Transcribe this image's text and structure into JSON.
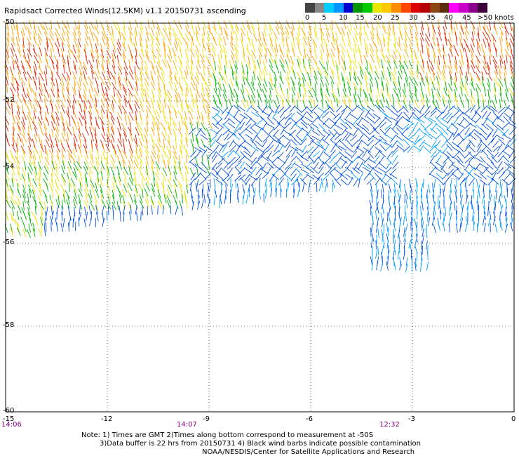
{
  "title": "Rapidsact Corrected Winds(12.5KM) v1.1 20150731 ascending",
  "scale": {
    "colors": [
      "#444444",
      "#888888",
      "#00cdff",
      "#0096ff",
      "#0000cd",
      "#009600",
      "#00c800",
      "#e6e600",
      "#ffc800",
      "#ff8c00",
      "#ff4500",
      "#dc0000",
      "#b40000",
      "#8b4513",
      "#5a2d0c",
      "#ff00ff",
      "#c800c8",
      "#8c008c",
      "#3c003c"
    ],
    "ticks": [
      "0",
      "5",
      "10",
      "15",
      "20",
      "25",
      "30",
      "35",
      "40",
      "45",
      ">50 knots"
    ]
  },
  "axes": {
    "lat_labels": [
      "-50",
      "-52",
      "-54",
      "-56",
      "-58",
      "-60"
    ],
    "lon_labels": [
      "-15",
      "-12",
      "-9",
      "-6",
      "-3",
      "0"
    ],
    "time_labels": [
      "14:06",
      "14:07",
      "12:32"
    ]
  },
  "notes": {
    "line1": "Note: 1) Times are GMT 2)Times along bottom correspond to measurement at -50S",
    "line2": "3)Data buffer is 22 hrs from 20150731 4) Black wind barbs indicate possible contamination",
    "line3": "NOAA/NESDIS/Center for Satellite Applications and Research"
  },
  "wind_colors": {
    "calm_blue": "#0050dc",
    "light_blue": "#00a0ff",
    "green": "#00b400",
    "yellow": "#f0e000",
    "orange": "#ffa000",
    "red": "#e02000"
  }
}
